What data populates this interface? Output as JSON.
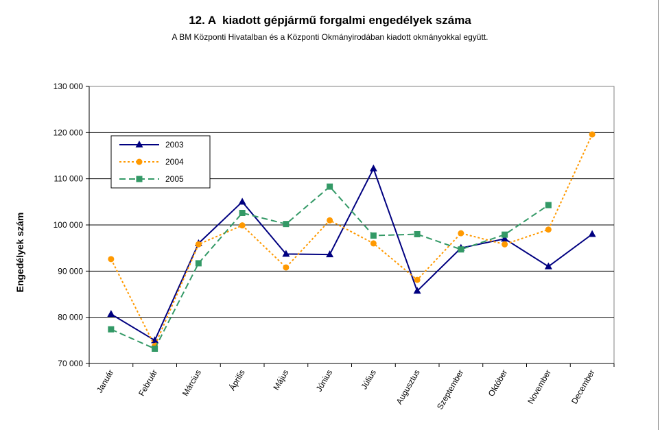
{
  "chart_data": {
    "type": "line",
    "title": "12. A  kiadott gépjármű forgalmi engedélyek száma",
    "subtitle": "A BM Központi Hivatalban és a Központi Okmányirodában kiadott okmányokkal együtt.",
    "ylabel": "Engedélyek szám",
    "xlabel": "",
    "ylim": [
      70000,
      130000
    ],
    "yticks": [
      70000,
      80000,
      90000,
      100000,
      110000,
      120000,
      130000
    ],
    "ytick_labels": [
      "70 000",
      "80 000",
      "90 000",
      "100 000",
      "110 000",
      "120 000",
      "130 000"
    ],
    "categories": [
      "Január",
      "Február",
      "Március",
      "Április",
      "Május",
      "Június",
      "Július",
      "Augusztus",
      "Szeptember",
      "Október",
      "November",
      "December"
    ],
    "grid": "horizontal",
    "legend_position": "top-left",
    "series": [
      {
        "name": "2003",
        "color": "#000080",
        "marker": "triangle",
        "line": "solid",
        "values": [
          80700,
          75000,
          96000,
          105000,
          93700,
          93600,
          112200,
          85700,
          95000,
          97000,
          91000,
          98000
        ]
      },
      {
        "name": "2004",
        "color": "#FF9900",
        "marker": "circle",
        "line": "dotted",
        "values": [
          92600,
          73800,
          95800,
          99900,
          90800,
          101000,
          96000,
          88100,
          98200,
          95800,
          99000,
          119600
        ]
      },
      {
        "name": "2005",
        "color": "#339966",
        "marker": "square",
        "line": "dashed",
        "values": [
          77400,
          73200,
          91700,
          102600,
          100200,
          108300,
          97700,
          98000,
          94700,
          97900,
          104300,
          null
        ]
      }
    ]
  }
}
